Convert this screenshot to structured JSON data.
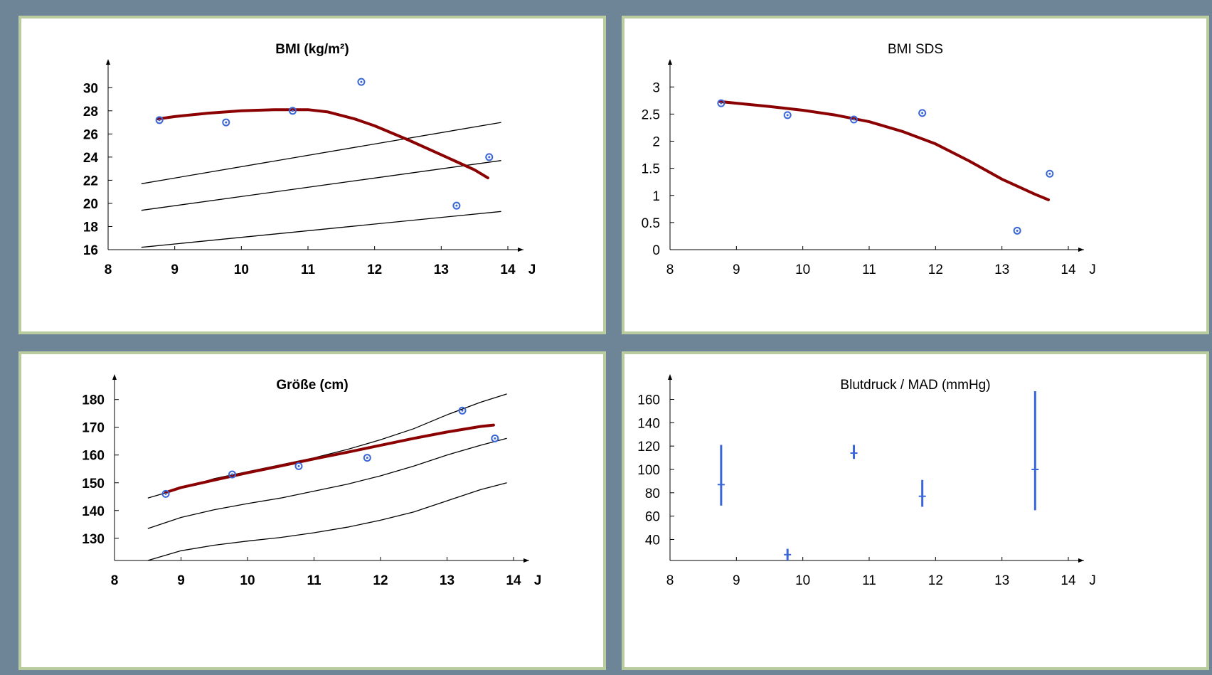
{
  "chart_data": [
    {
      "type": "line",
      "title": "BMI (kg/m²)",
      "bold": true,
      "xlabel": "J",
      "xlim": [
        8,
        14
      ],
      "xticks": [
        8,
        9,
        10,
        11,
        12,
        13,
        14
      ],
      "ylim": [
        16,
        31
      ],
      "yticks": [
        16,
        18,
        20,
        22,
        24,
        26,
        28,
        30
      ],
      "grid": false,
      "colors": {
        "measured": "#3a66d8",
        "trend": "#8b0000",
        "reference": "#000000"
      },
      "reference_curves": [
        {
          "x": [
            8.5,
            13.9
          ],
          "y": [
            21.7,
            27.0
          ]
        },
        {
          "x": [
            8.5,
            13.9
          ],
          "y": [
            19.4,
            23.7
          ]
        },
        {
          "x": [
            8.5,
            13.9
          ],
          "y": [
            16.2,
            19.3
          ]
        }
      ],
      "trend": {
        "x": [
          8.75,
          9.0,
          9.5,
          10.0,
          10.5,
          11.0,
          11.3,
          11.7,
          12.0,
          12.5,
          13.0,
          13.5,
          13.7
        ],
        "y": [
          27.3,
          27.5,
          27.8,
          28.0,
          28.1,
          28.1,
          27.9,
          27.3,
          26.7,
          25.5,
          24.2,
          22.9,
          22.2
        ]
      },
      "points": {
        "x": [
          8.77,
          9.77,
          10.77,
          11.8,
          13.23,
          13.72
        ],
        "y": [
          27.2,
          27.0,
          28.0,
          30.5,
          19.8,
          24.0
        ]
      }
    },
    {
      "type": "line",
      "title": "BMI SDS",
      "bold": false,
      "xlabel": "J",
      "xlim": [
        8,
        14
      ],
      "xticks": [
        8,
        9,
        10,
        11,
        12,
        13,
        14
      ],
      "ylim": [
        0,
        3.2
      ],
      "yticks": [
        "0",
        "0.5",
        "1",
        "1.5",
        "2",
        "2.5",
        "3"
      ],
      "grid": false,
      "colors": {
        "measured": "#3a66d8",
        "trend": "#8b0000",
        "reference": "#000000"
      },
      "reference_curves": [],
      "trend": {
        "x": [
          8.75,
          9.0,
          9.5,
          10.0,
          10.5,
          11.0,
          11.5,
          12.0,
          12.5,
          13.0,
          13.5,
          13.7
        ],
        "y": [
          2.73,
          2.7,
          2.64,
          2.57,
          2.48,
          2.36,
          2.18,
          1.95,
          1.64,
          1.3,
          1.02,
          0.92
        ]
      },
      "points": {
        "x": [
          8.77,
          9.77,
          10.77,
          11.8,
          13.23,
          13.72
        ],
        "y": [
          2.7,
          2.48,
          2.4,
          2.52,
          0.35,
          1.4
        ]
      }
    },
    {
      "type": "line",
      "title": "Größe (cm)",
      "bold": true,
      "xlabel": "J",
      "xlim": [
        8,
        14
      ],
      "xticks": [
        8,
        9,
        10,
        11,
        12,
        13,
        14
      ],
      "ylim": [
        122,
        183
      ],
      "yticks": [
        130,
        140,
        150,
        160,
        170,
        180
      ],
      "grid": false,
      "colors": {
        "measured": "#3a66d8",
        "trend": "#8b0000",
        "reference": "#000000"
      },
      "reference_curves": [
        {
          "x": [
            8.5,
            9.0,
            9.5,
            10.0,
            10.5,
            11.0,
            11.5,
            12.0,
            12.5,
            13.0,
            13.5,
            13.9
          ],
          "y": [
            144.5,
            148.0,
            151.5,
            154.0,
            156.5,
            159.0,
            162.0,
            165.5,
            169.5,
            174.5,
            179.0,
            182.0
          ]
        },
        {
          "x": [
            8.5,
            9.0,
            9.5,
            10.0,
            10.5,
            11.0,
            11.5,
            12.0,
            12.5,
            13.0,
            13.5,
            13.9
          ],
          "y": [
            133.5,
            137.5,
            140.3,
            142.5,
            144.5,
            147.0,
            149.5,
            152.5,
            156.0,
            160.0,
            163.5,
            166.0
          ]
        },
        {
          "x": [
            8.5,
            9.0,
            9.5,
            10.0,
            10.5,
            11.0,
            11.5,
            12.0,
            12.5,
            13.0,
            13.5,
            13.9
          ],
          "y": [
            122.0,
            125.5,
            127.5,
            129.0,
            130.3,
            132.0,
            134.0,
            136.5,
            139.5,
            143.5,
            147.5,
            150.0
          ]
        }
      ],
      "trend": {
        "x": [
          8.77,
          9.0,
          9.5,
          10.0,
          10.5,
          11.0,
          11.5,
          12.0,
          12.5,
          13.0,
          13.5,
          13.7
        ],
        "y": [
          146.5,
          148.3,
          151.0,
          153.6,
          156.1,
          158.6,
          161.0,
          163.5,
          166.0,
          168.3,
          170.3,
          170.8
        ]
      },
      "points": {
        "x": [
          8.77,
          9.77,
          10.77,
          11.8,
          13.23,
          13.72
        ],
        "y": [
          146.0,
          153.0,
          156.0,
          159.0,
          176.0,
          166.0
        ]
      }
    },
    {
      "type": "errorbar",
      "title": "Blutdruck / MAD (mmHg)",
      "bold": false,
      "xlabel": "J",
      "xlim": [
        8,
        14
      ],
      "xticks": [
        8,
        9,
        10,
        11,
        12,
        13,
        14
      ],
      "ylim": [
        22,
        167
      ],
      "yticks": [
        40,
        60,
        80,
        100,
        120,
        140,
        160
      ],
      "grid": false,
      "colors": {
        "measured": "#3a66d8"
      },
      "bars": [
        {
          "x": 8.77,
          "low": 69,
          "high": 121,
          "mad": 87
        },
        {
          "x": 9.77,
          "low": 22,
          "high": 32,
          "mad": 27
        },
        {
          "x": 10.77,
          "low": 109,
          "high": 121,
          "mad": 114
        },
        {
          "x": 11.8,
          "low": 68,
          "high": 91,
          "mad": 77
        },
        {
          "x": 13.5,
          "low": 65,
          "high": 167,
          "mad": 100
        }
      ]
    }
  ]
}
